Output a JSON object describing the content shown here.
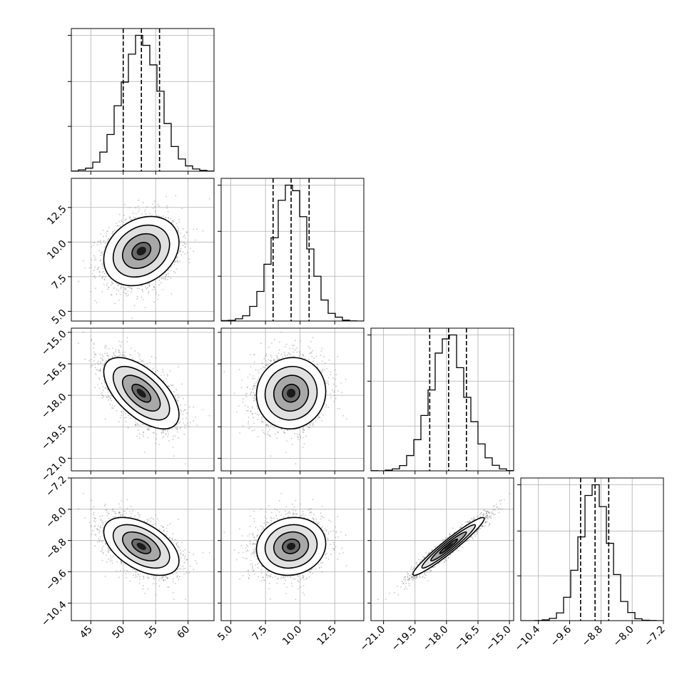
{
  "chart_data": {
    "type": "corner",
    "parameters": [
      {
        "mean": 52.8,
        "sd": 2.9,
        "lim": [
          42.0,
          64.0
        ],
        "ticks": [
          45,
          50,
          55,
          60
        ],
        "tick_labels": [
          "45",
          "50",
          "55",
          "60"
        ],
        "quantiles": [
          50.0,
          52.8,
          55.6
        ]
      },
      {
        "mean": 9.35,
        "sd": 1.25,
        "lim": [
          4.3,
          14.6
        ],
        "ticks": [
          5.0,
          7.5,
          10.0,
          12.5
        ],
        "tick_labels": [
          "5.0",
          "7.5",
          "10.0",
          "12.5"
        ],
        "quantiles": [
          8.05,
          9.35,
          10.65
        ]
      },
      {
        "mean": -17.9,
        "sd": 0.85,
        "lim": [
          -21.6,
          -14.8
        ],
        "ticks": [
          -21.0,
          -19.5,
          -18.0,
          -16.5,
          -15.0
        ],
        "tick_labels": [
          "−21.0",
          "−19.5",
          "−18.0",
          "−16.5",
          "−15.0"
        ],
        "quantiles": [
          -18.8,
          -17.9,
          -17.05
        ]
      },
      {
        "mean": -8.95,
        "sd": 0.37,
        "lim": [
          -10.85,
          -7.2
        ],
        "ticks": [
          -10.4,
          -9.6,
          -8.8,
          -8.0,
          -7.2
        ],
        "tick_labels": [
          "−10.4",
          "−9.6",
          "−8.8",
          "−8.0",
          "−7.2"
        ],
        "quantiles": [
          -9.32,
          -8.95,
          -8.6
        ]
      }
    ],
    "correlations": [
      [
        1.0,
        0.25,
        -0.6,
        -0.5
      ],
      [
        0.25,
        1.0,
        0.05,
        0.1
      ],
      [
        -0.6,
        0.05,
        1.0,
        0.96
      ],
      [
        -0.5,
        0.1,
        0.96,
        1.0
      ]
    ],
    "histogram_bins": 20,
    "contour_levels_sigma": [
      0.5,
      1.0,
      1.5,
      2.0
    ],
    "grid": true,
    "colors": {
      "points": "#808080",
      "contour": "#000000",
      "hist": "#000000"
    }
  }
}
